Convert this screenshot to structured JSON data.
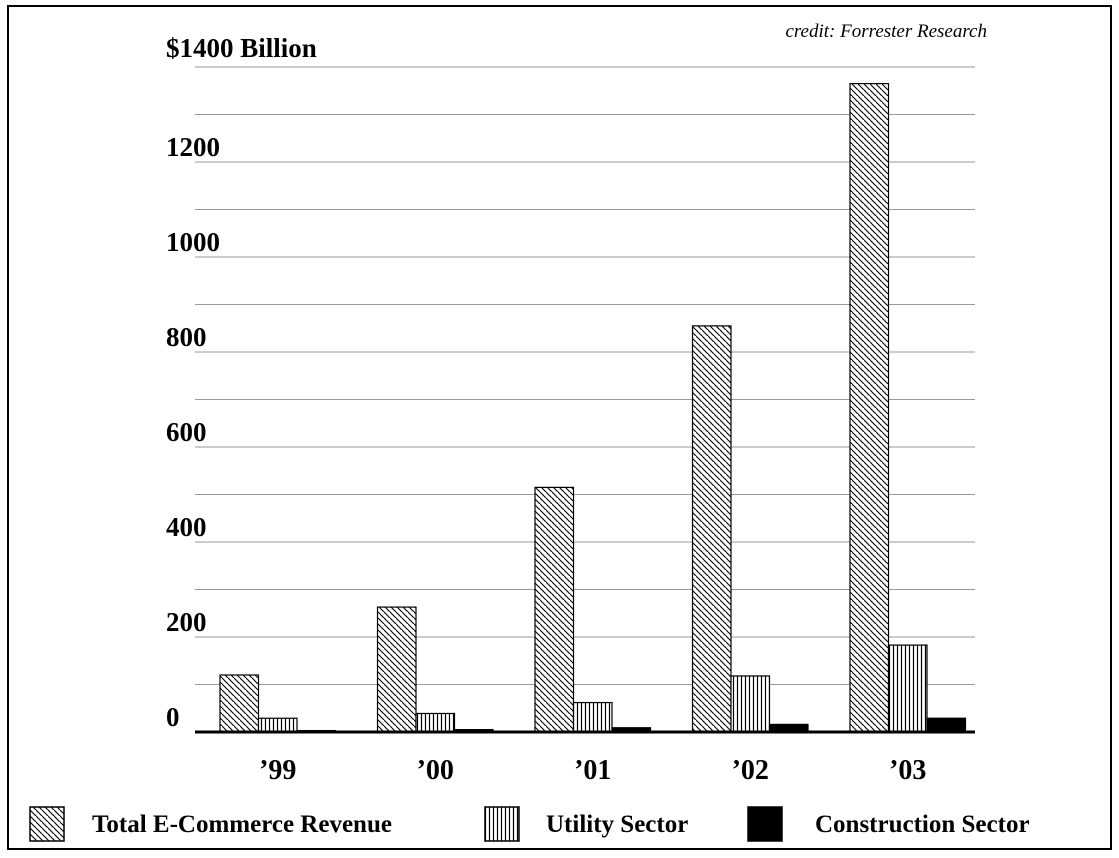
{
  "chart_data": {
    "type": "bar",
    "credit": "credit: Forrester Research",
    "y_top_label": "$1400 Billion",
    "categories": [
      "’99",
      "’00",
      "’01",
      "’02",
      "’03"
    ],
    "yticks": [
      "0",
      "200",
      "400",
      "600",
      "800",
      "1000",
      "1200"
    ],
    "ylim": [
      0,
      1400
    ],
    "grid": true,
    "legend_position": "bottom",
    "series": [
      {
        "name": "Total E-Commerce Revenue",
        "fill": "diagonal-hatch",
        "values": [
          120,
          263,
          515,
          855,
          1365
        ]
      },
      {
        "name": "Utility Sector",
        "fill": "vertical-hatch",
        "values": [
          29,
          39,
          62,
          118,
          183
        ]
      },
      {
        "name": "Construction Sector",
        "fill": "solid-black",
        "values": [
          3,
          5,
          9,
          16,
          29
        ]
      }
    ]
  }
}
